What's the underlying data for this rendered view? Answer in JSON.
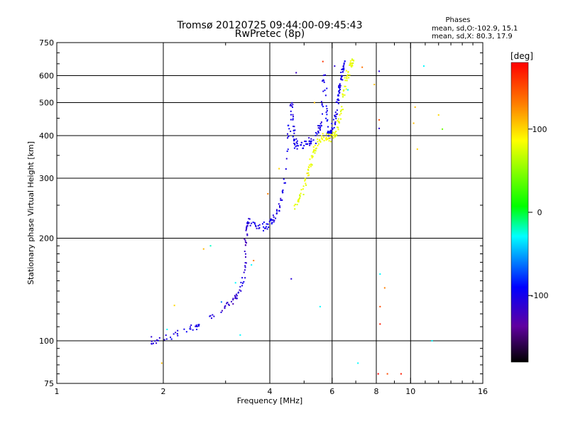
{
  "header": {
    "title": "Tromsø 20120725 09:44:00-09:45:43",
    "subtitle": "RwPretec (8p)"
  },
  "phases_box": {
    "heading": "Phases",
    "line_o": "mean, sd,O:-102.9, 15.1",
    "line_x": "mean, sd,X:  80.3, 17.9"
  },
  "chart_data": {
    "type": "scatter",
    "xlabel": "Frequency [MHz]",
    "ylabel": "Stationary phase Virtual Height [km]",
    "xscale": "log",
    "yscale": "log",
    "xlim": [
      1,
      16
    ],
    "ylim": [
      75,
      750
    ],
    "xticks": [
      1,
      2,
      4,
      6,
      8,
      10,
      16
    ],
    "xtick_labels": [
      "1",
      "2",
      "4",
      "6",
      "8",
      "10",
      "16"
    ],
    "yticks": [
      75,
      100,
      200,
      300,
      400,
      500,
      600,
      750
    ],
    "ytick_labels": [
      "75",
      "100",
      "200",
      "300",
      "400",
      "500",
      "600",
      "750"
    ],
    "grid": true,
    "colorbar": {
      "label": "[deg]",
      "range": [
        -180,
        180
      ],
      "ticks": [
        100,
        0,
        -100
      ],
      "tick_labels": [
        "100",
        "0",
        "-100"
      ]
    },
    "series": [
      {
        "curve": [
          [
            1.85,
            100
          ],
          [
            2.0,
            102
          ],
          [
            2.2,
            106
          ],
          [
            2.4,
            109
          ],
          [
            2.6,
            113
          ],
          [
            2.9,
            122
          ],
          [
            3.15,
            132
          ],
          [
            3.3,
            140
          ],
          [
            3.4,
            160
          ],
          [
            3.42,
            200
          ],
          [
            3.45,
            221
          ],
          [
            3.55,
            225
          ],
          [
            3.7,
            216
          ],
          [
            3.9,
            215
          ],
          [
            4.05,
            222
          ],
          [
            4.25,
            245
          ],
          [
            4.4,
            290
          ],
          [
            4.55,
            440
          ],
          [
            4.62,
            500
          ],
          [
            4.7,
            380
          ],
          [
            4.9,
            375
          ],
          [
            5.1,
            378
          ],
          [
            5.3,
            390
          ],
          [
            5.5,
            410
          ],
          [
            5.6,
            440
          ],
          [
            5.7,
            600
          ],
          [
            5.85,
            400
          ],
          [
            5.95,
            415
          ],
          [
            6.1,
            430
          ],
          [
            6.2,
            480
          ],
          [
            6.3,
            560
          ],
          [
            6.4,
            620
          ],
          [
            6.55,
            660
          ]
        ],
        "spread": [
          0.05,
          0.045,
          0.04,
          0.035,
          0.035,
          0.03,
          0.035,
          0.04,
          0.06,
          0.08,
          0.06,
          0.06,
          0.06,
          0.05,
          0.05,
          0.04,
          0.05,
          0.05,
          0.05,
          0.05,
          0.04,
          0.04,
          0.05,
          0.05,
          0.05,
          0.06,
          0.04,
          0.05,
          0.05,
          0.05,
          0.05,
          0.05,
          0.05
        ],
        "phase": [
          -110,
          -105,
          -102,
          -100,
          -100,
          -110,
          -120,
          -108,
          -110,
          -120,
          -105,
          -100,
          -102,
          -100,
          -102,
          -105,
          -102,
          -100,
          -103,
          -102,
          -100,
          -102,
          -100,
          -100,
          -100,
          -100,
          -90,
          -95,
          -100,
          -100,
          -100,
          -100,
          -100
        ],
        "count": 360
      },
      {
        "curve": [
          [
            4.7,
            250
          ],
          [
            4.85,
            262
          ],
          [
            5.0,
            280
          ],
          [
            5.15,
            310
          ],
          [
            5.3,
            350
          ],
          [
            5.45,
            380
          ],
          [
            5.6,
            395
          ],
          [
            5.8,
            392
          ],
          [
            6.0,
            396
          ],
          [
            6.15,
            405
          ],
          [
            6.3,
            450
          ],
          [
            6.45,
            520
          ],
          [
            6.6,
            590
          ],
          [
            6.75,
            640
          ],
          [
            6.9,
            660
          ]
        ],
        "spread": [
          0.05,
          0.05,
          0.05,
          0.05,
          0.05,
          0.04,
          0.04,
          0.04,
          0.04,
          0.04,
          0.05,
          0.05,
          0.05,
          0.05,
          0.05
        ],
        "phase": [
          75,
          78,
          80,
          82,
          80,
          82,
          85,
          82,
          80,
          80,
          78,
          80,
          82,
          80,
          80
        ],
        "count": 150
      }
    ],
    "scatter_points": [
      {
        "x": 1.98,
        "y": 86,
        "p": 110
      },
      {
        "x": 2.15,
        "y": 127,
        "p": 100
      },
      {
        "x": 2.6,
        "y": 186,
        "p": 110
      },
      {
        "x": 2.72,
        "y": 190,
        "p": -20
      },
      {
        "x": 2.92,
        "y": 130,
        "p": -60
      },
      {
        "x": 3.6,
        "y": 172,
        "p": 130
      },
      {
        "x": 3.55,
        "y": 167,
        "p": -30
      },
      {
        "x": 3.95,
        "y": 270,
        "p": 130
      },
      {
        "x": 4.25,
        "y": 320,
        "p": 100
      },
      {
        "x": 4.6,
        "y": 152,
        "p": -110
      },
      {
        "x": 4.75,
        "y": 612,
        "p": -120
      },
      {
        "x": 5.1,
        "y": 310,
        "p": 100
      },
      {
        "x": 5.35,
        "y": 500,
        "p": 110
      },
      {
        "x": 5.55,
        "y": 126,
        "p": -30
      },
      {
        "x": 5.65,
        "y": 660,
        "p": 160
      },
      {
        "x": 6.1,
        "y": 640,
        "p": -110
      },
      {
        "x": 6.65,
        "y": 545,
        "p": -30
      },
      {
        "x": 7.1,
        "y": 86,
        "p": -30
      },
      {
        "x": 7.3,
        "y": 635,
        "p": 135
      },
      {
        "x": 7.9,
        "y": 565,
        "p": 110
      },
      {
        "x": 8.15,
        "y": 618,
        "p": -110
      },
      {
        "x": 8.15,
        "y": 420,
        "p": -110
      },
      {
        "x": 8.15,
        "y": 445,
        "p": 150
      },
      {
        "x": 8.2,
        "y": 157,
        "p": -30
      },
      {
        "x": 8.2,
        "y": 126,
        "p": 150
      },
      {
        "x": 8.2,
        "y": 112,
        "p": 170
      },
      {
        "x": 8.1,
        "y": 80,
        "p": 180
      },
      {
        "x": 8.45,
        "y": 143,
        "p": 130
      },
      {
        "x": 8.6,
        "y": 80,
        "p": 150
      },
      {
        "x": 9.4,
        "y": 80,
        "p": 170
      },
      {
        "x": 10.2,
        "y": 435,
        "p": 110
      },
      {
        "x": 10.3,
        "y": 485,
        "p": 110
      },
      {
        "x": 10.45,
        "y": 365,
        "p": 100
      },
      {
        "x": 10.9,
        "y": 640,
        "p": -30
      },
      {
        "x": 11.5,
        "y": 100,
        "p": -30
      },
      {
        "x": 12.0,
        "y": 460,
        "p": 100
      },
      {
        "x": 12.3,
        "y": 418,
        "p": 40
      },
      {
        "x": 2.05,
        "y": 108,
        "p": -30
      },
      {
        "x": 3.2,
        "y": 148,
        "p": -30
      },
      {
        "x": 3.3,
        "y": 104,
        "p": -30
      }
    ],
    "point_count_note": null
  }
}
